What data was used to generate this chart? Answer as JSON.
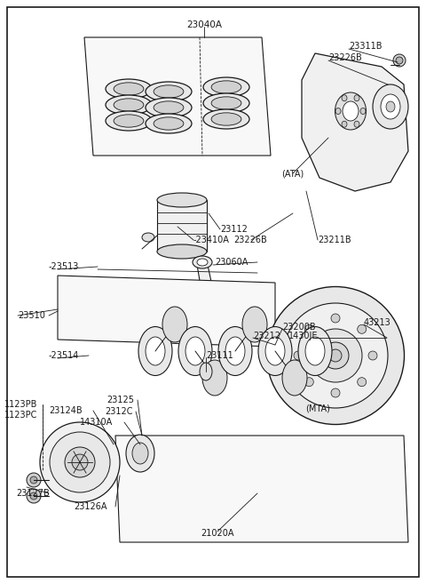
{
  "bg_color": "#ffffff",
  "lc": "#1a1a1a",
  "tc": "#1a1a1a",
  "fig_w": 4.8,
  "fig_h": 6.57,
  "dpi": 100,
  "labels": [
    [
      "23040A",
      230,
      28,
      "center",
      7.5
    ],
    [
      "23311B",
      393,
      52,
      "left",
      7.0
    ],
    [
      "23226B",
      370,
      65,
      "left",
      7.0
    ],
    [
      "(ATA)",
      330,
      195,
      "center",
      7.0
    ],
    [
      "23112",
      248,
      258,
      "left",
      7.0
    ],
    [
      "-23410A",
      218,
      270,
      "left",
      7.0
    ],
    [
      "23226B",
      263,
      270,
      "left",
      7.0
    ],
    [
      "23211B",
      358,
      270,
      "left",
      7.0
    ],
    [
      "-23513",
      55,
      300,
      "left",
      7.0
    ],
    [
      "23060A",
      242,
      295,
      "left",
      7.0
    ],
    [
      "23510",
      20,
      355,
      "left",
      7.0
    ],
    [
      "23200B",
      318,
      368,
      "left",
      7.0
    ],
    [
      "43213",
      410,
      363,
      "left",
      7.0
    ],
    [
      "23212",
      285,
      378,
      "left",
      7.0
    ],
    [
      "1430JE",
      325,
      378,
      "left",
      7.0
    ],
    [
      "23111",
      232,
      400,
      "left",
      7.0
    ],
    [
      "-23514",
      55,
      400,
      "left",
      7.0
    ],
    [
      "1123PB",
      5,
      455,
      "left",
      7.0
    ],
    [
      "1123PC",
      5,
      467,
      "left",
      7.0
    ],
    [
      "23124B",
      55,
      462,
      "left",
      7.0
    ],
    [
      "23125",
      120,
      450,
      "left",
      7.0
    ],
    [
      "2312C",
      118,
      463,
      "left",
      7.0
    ],
    [
      "14310A",
      90,
      475,
      "left",
      7.0
    ],
    [
      "(MTA)",
      358,
      460,
      "center",
      7.0
    ],
    [
      "23127B",
      18,
      555,
      "left",
      7.0
    ],
    [
      "23126A",
      83,
      570,
      "left",
      7.0
    ],
    [
      "21020A",
      245,
      600,
      "center",
      7.0
    ]
  ]
}
